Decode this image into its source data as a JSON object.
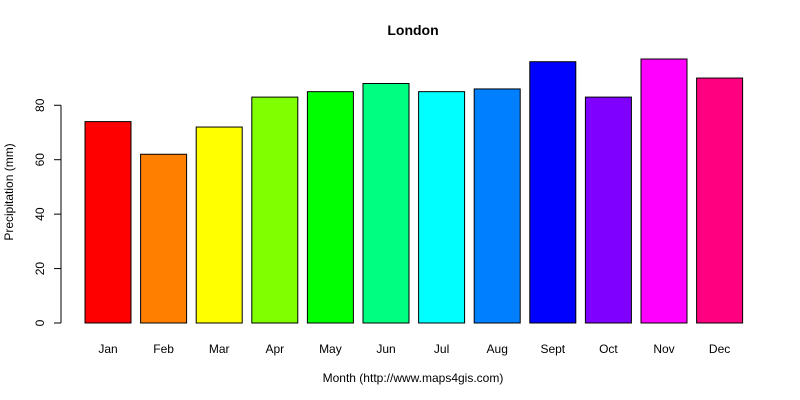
{
  "chart_data": {
    "type": "bar",
    "title": "London",
    "xlabel": "Month (http://www.maps4gis.com)",
    "ylabel": "Precipitation (mm)",
    "categories": [
      "Jan",
      "Feb",
      "Mar",
      "Apr",
      "May",
      "Jun",
      "Jul",
      "Aug",
      "Sept",
      "Oct",
      "Nov",
      "Dec"
    ],
    "values": [
      74,
      62,
      72,
      83,
      85,
      88,
      85,
      86,
      96,
      83,
      97,
      90
    ],
    "colors": [
      "#FF0000",
      "#FF8000",
      "#FFFF00",
      "#80FF00",
      "#00FF00",
      "#00FF80",
      "#00FFFF",
      "#0080FF",
      "#0000FF",
      "#8000FF",
      "#FF00FF",
      "#FF0080"
    ],
    "ylim": [
      0,
      97
    ],
    "yticks": [
      0,
      20,
      40,
      60,
      80
    ],
    "ytick_labels": [
      "0",
      "20",
      "40",
      "60",
      "80"
    ],
    "grid": false,
    "legend": "none"
  }
}
